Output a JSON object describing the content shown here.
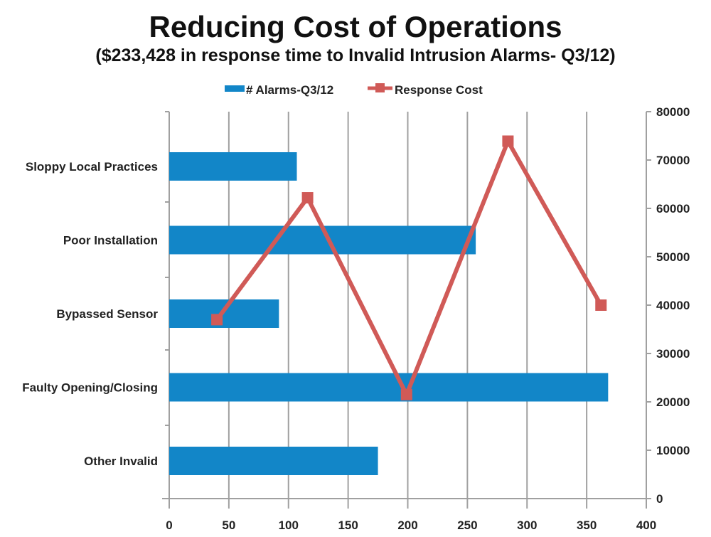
{
  "chart_data": {
    "type": "bar",
    "orientation": "horizontal",
    "title": "Reducing Cost of Operations",
    "subtitle": "($233,428 in response time to Invalid Intrusion Alarms- Q3/12)",
    "categories": [
      "Sloppy Local Practices",
      "Poor Installation",
      "Bypassed Sensor",
      "Faulty Opening/Closing",
      "Other Invalid"
    ],
    "series": [
      {
        "name": "# Alarms-Q3/12",
        "type": "bar",
        "color": "#1286c8",
        "values": [
          107,
          257,
          92,
          368,
          175
        ],
        "axis": "bottom"
      },
      {
        "name": "Response Cost",
        "type": "line",
        "color": "#d05a57",
        "marker": "square",
        "x": [
          40,
          116,
          199,
          284,
          362
        ],
        "values": [
          37000,
          62200,
          21500,
          73900,
          40000
        ],
        "axis": "right"
      }
    ],
    "x_axis": {
      "range": [
        0,
        400
      ],
      "ticks": [
        "0",
        "50",
        "100",
        "150",
        "200",
        "250",
        "300",
        "350",
        "400"
      ],
      "grid": true
    },
    "y2_axis": {
      "range": [
        0,
        80000
      ],
      "ticks": [
        "0",
        "10000",
        "20000",
        "30000",
        "40000",
        "50000",
        "60000",
        "70000",
        "80000"
      ]
    },
    "legend": "top"
  }
}
